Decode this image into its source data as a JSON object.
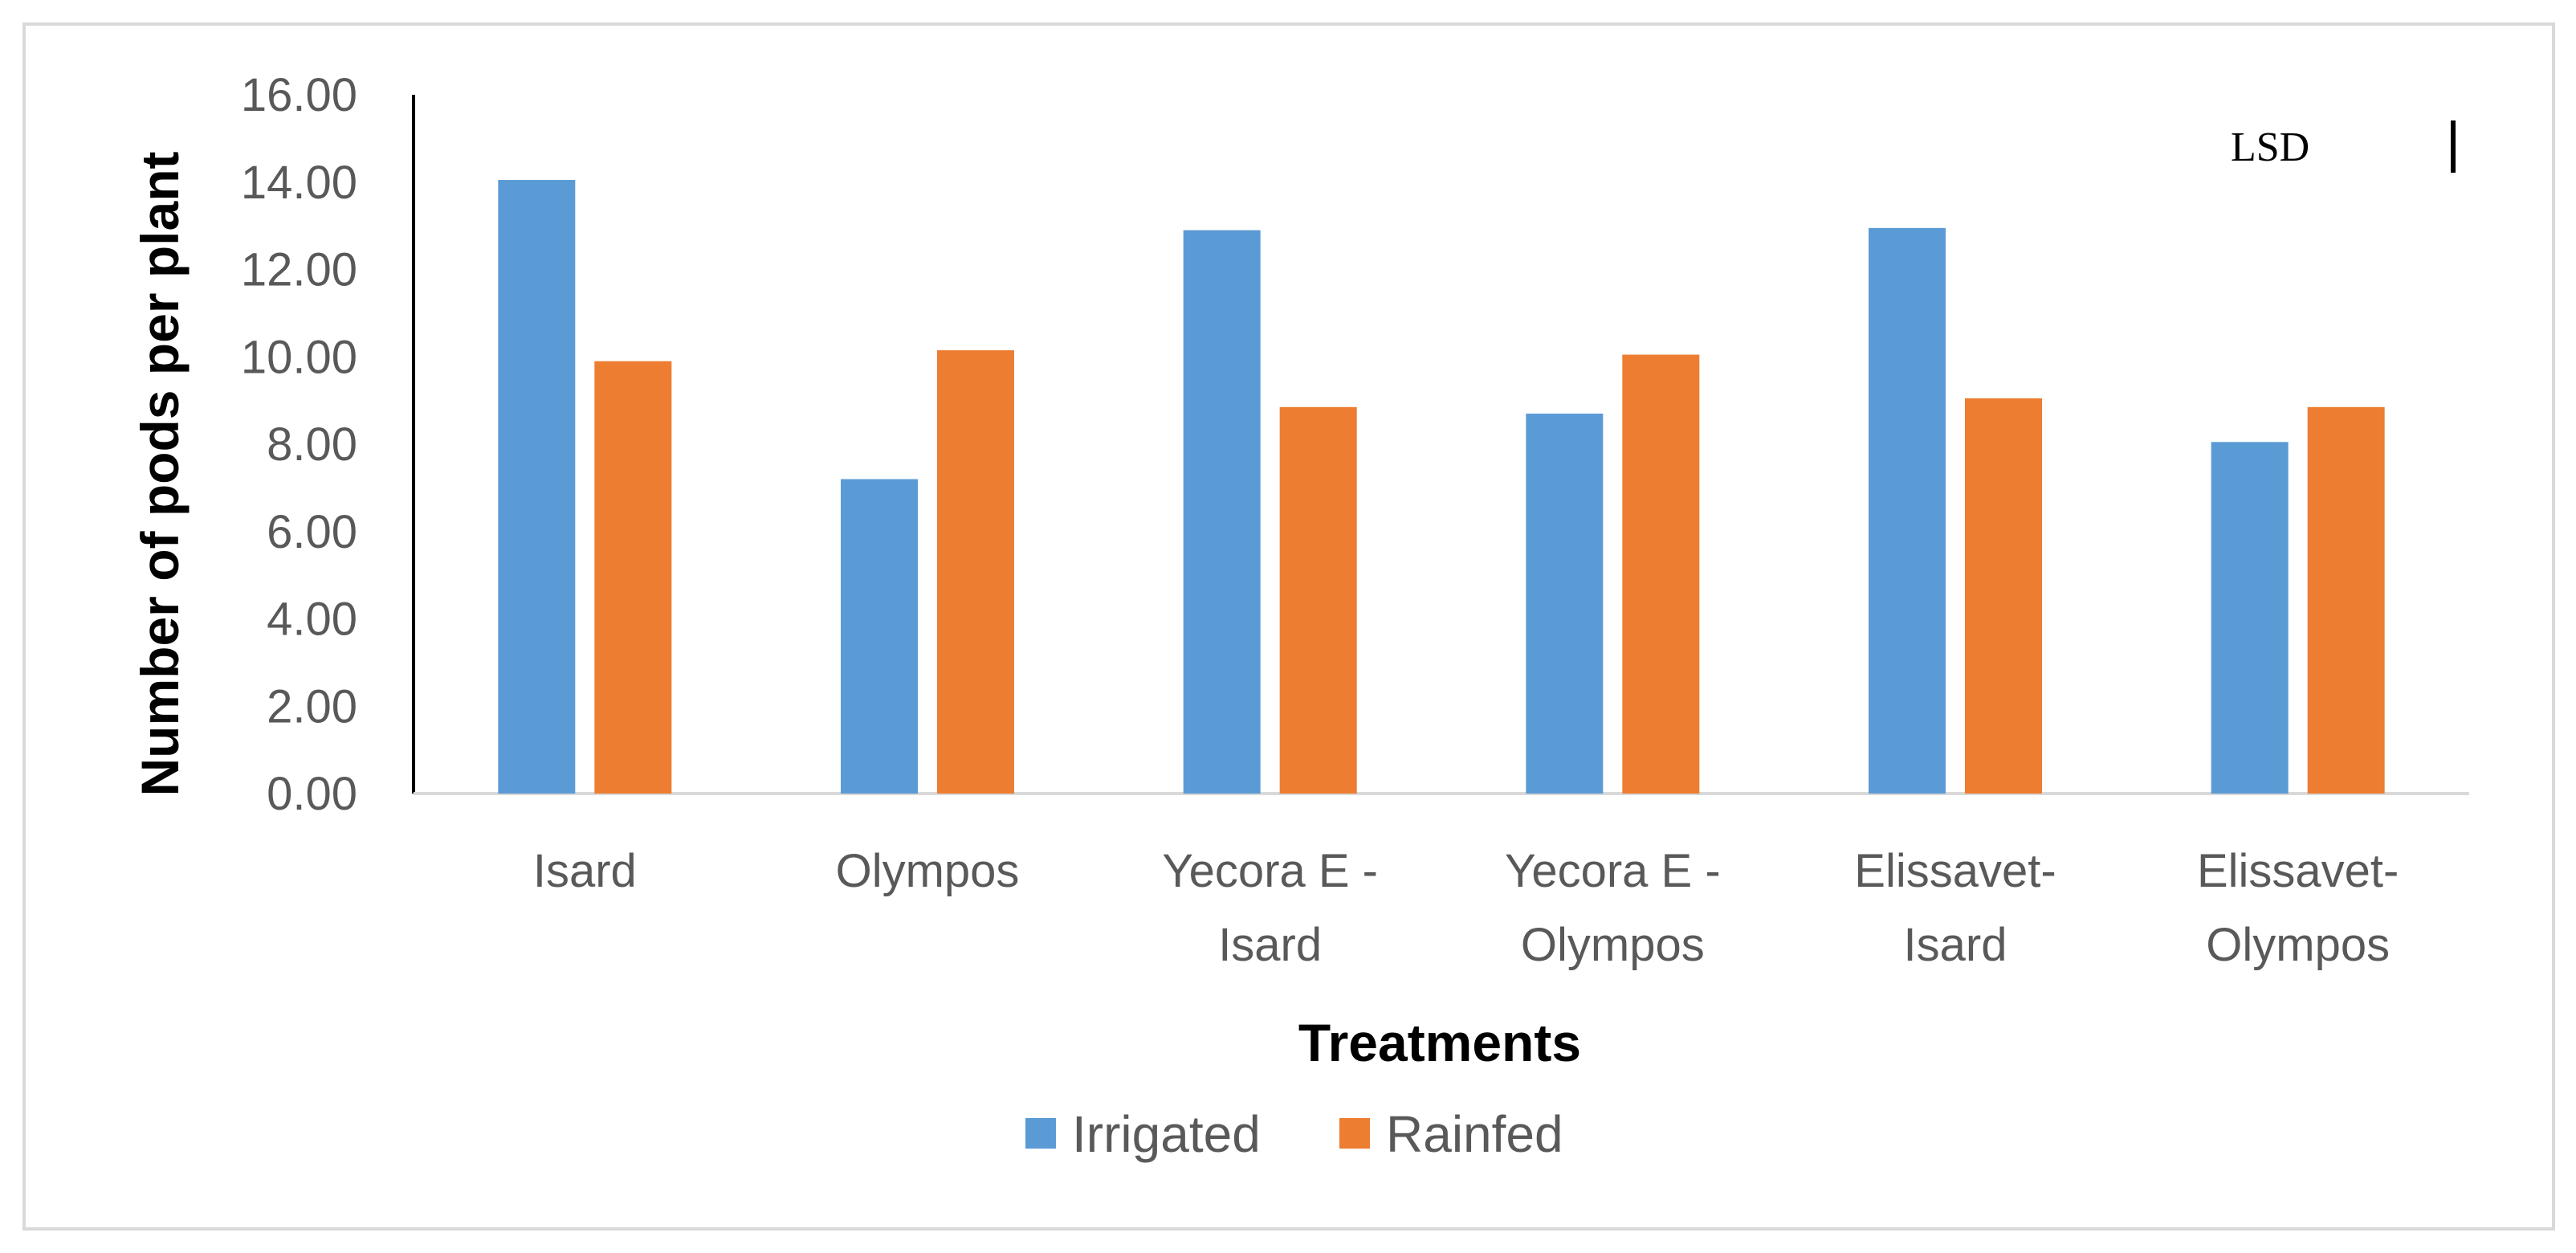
{
  "chart_data": {
    "type": "bar",
    "title": "",
    "xlabel": "Treatments",
    "ylabel": "Number of pods per plant",
    "ylim": [
      0,
      16
    ],
    "yticks": [
      "0.00",
      "2.00",
      "4.00",
      "6.00",
      "8.00",
      "10.00",
      "12.00",
      "14.00",
      "16.00"
    ],
    "categories": [
      [
        "Isard"
      ],
      [
        "Olympos"
      ],
      [
        "Yecora E -",
        "Isard"
      ],
      [
        "Yecora E -",
        "Olympos"
      ],
      [
        "Elissavet-",
        "Isard"
      ],
      [
        "Elissavet-",
        "Olympos"
      ]
    ],
    "series": [
      {
        "name": "Irrigated",
        "color": "#5b9bd5",
        "values": [
          14.05,
          7.2,
          12.9,
          8.7,
          12.95,
          8.05
        ]
      },
      {
        "name": "Rainfed",
        "color": "#ed7d31",
        "values": [
          9.9,
          10.15,
          8.85,
          10.05,
          9.05,
          8.85
        ]
      }
    ],
    "legend": "bottom-center",
    "grid": false,
    "annotation": {
      "text": "LSD",
      "marker": "|"
    }
  }
}
